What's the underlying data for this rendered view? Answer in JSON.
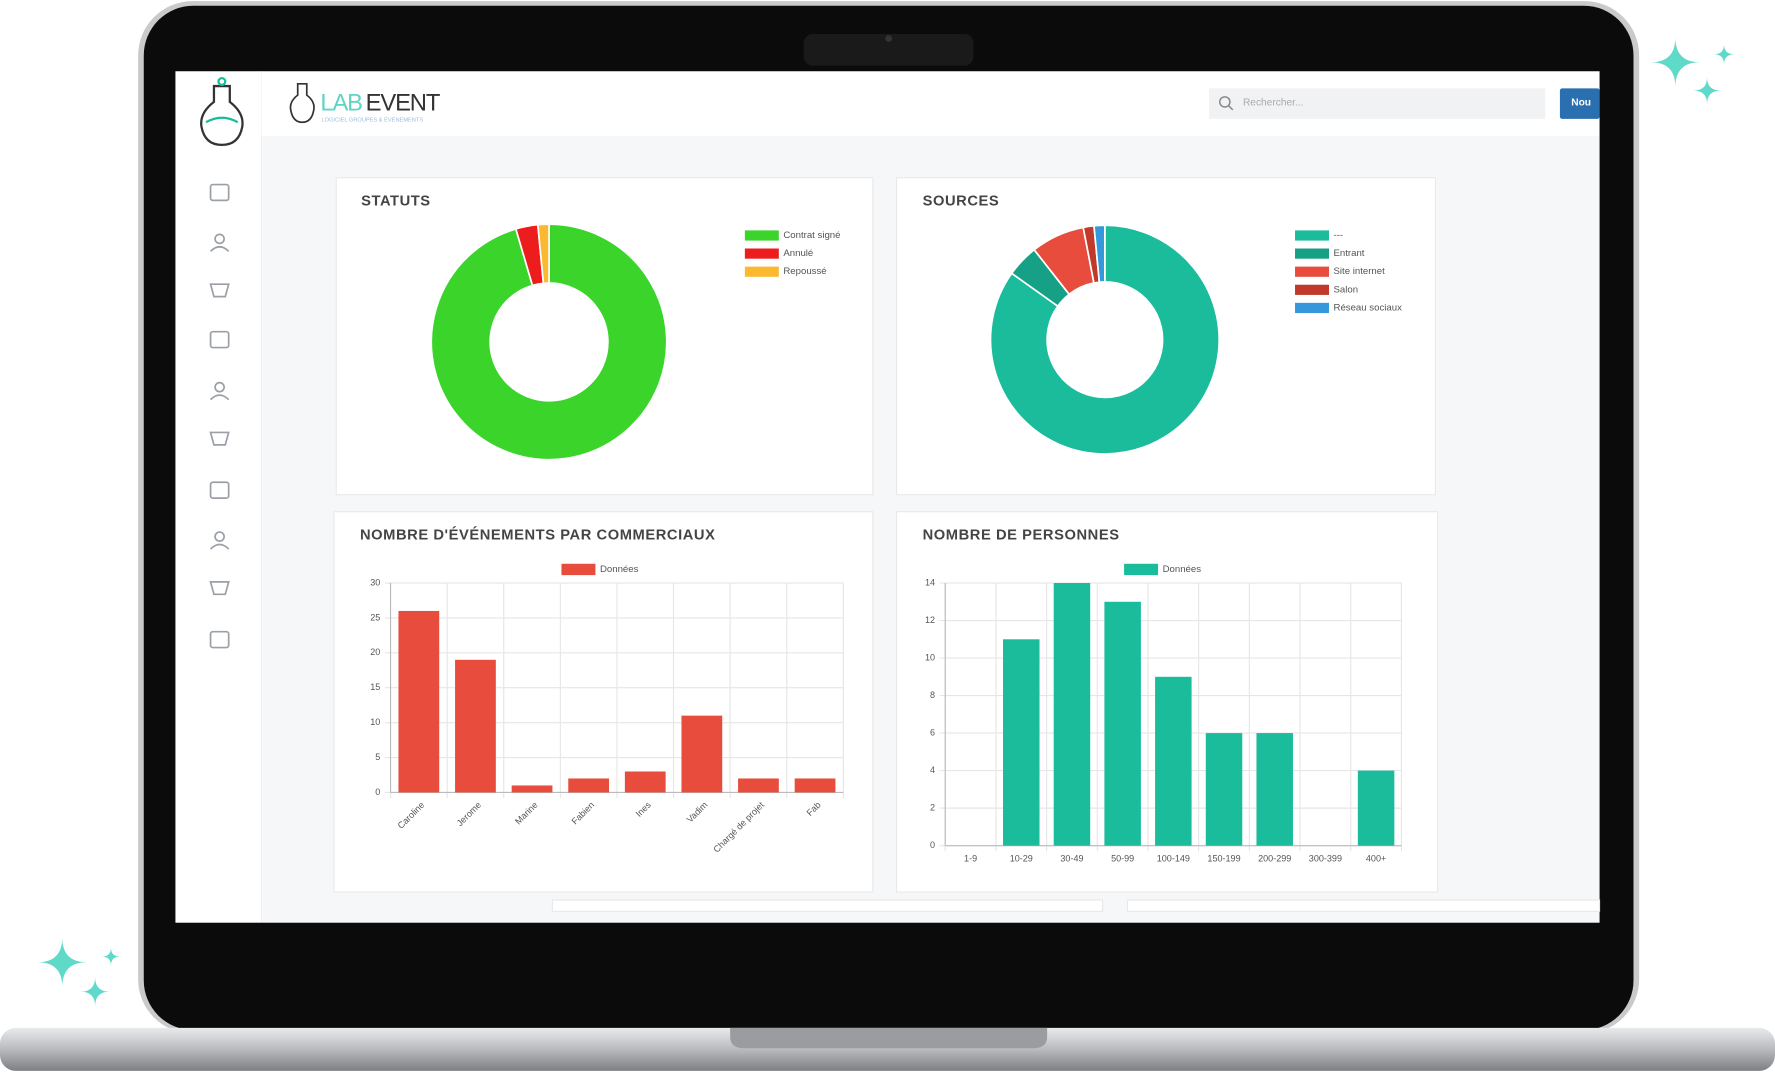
{
  "header": {
    "brand": [
      "LAB",
      "EVENT"
    ],
    "tagline": "LOGICIEL GROUPES & ÉVÉNEMENTS",
    "search_placeholder": "Rechercher...",
    "button": "Nou"
  },
  "chart_data": [
    {
      "type": "doughnut",
      "title": "STATUTS",
      "categories": [
        "Contrat signé",
        "Annulé",
        "Repoussé"
      ],
      "values": [
        63,
        2,
        1
      ],
      "colors": [
        "#3ad42b",
        "#ee1d1d",
        "#fbb92f"
      ]
    },
    {
      "type": "doughnut",
      "title": "SOURCES",
      "categories": [
        "---",
        "Entrant",
        "Site internet",
        "Salon",
        "Réseau sociaux"
      ],
      "values": [
        56,
        3,
        5,
        1,
        1
      ],
      "colors": [
        "#1abc9c",
        "#16a085",
        "#e74c3c",
        "#c0392b",
        "#3498db"
      ]
    },
    {
      "type": "bar",
      "title": "NOMBRE D'ÉVÉNEMENTS PAR COMMERCIAUX",
      "categories": [
        "Caroline",
        "Jerome",
        "Marine",
        "Fabien",
        "Ines",
        "Vadim",
        "Chargé de projet",
        "Fab"
      ],
      "series": [
        {
          "name": "Données",
          "color": "#e74c3c",
          "values": [
            26,
            19,
            1,
            2,
            3,
            11,
            2,
            2
          ]
        }
      ],
      "ylim": [
        0,
        30
      ],
      "yticks": [
        0,
        5,
        10,
        15,
        20,
        25,
        30
      ],
      "grid": true
    },
    {
      "type": "bar",
      "title": "NOMBRE DE PERSONNES",
      "categories": [
        "1-9",
        "10-29",
        "30-49",
        "50-99",
        "100-149",
        "150-199",
        "200-299",
        "300-399",
        "400+"
      ],
      "series": [
        {
          "name": "Données",
          "color": "#1abc9c",
          "values": [
            0,
            11,
            14,
            13,
            9,
            6,
            6,
            0,
            4
          ]
        }
      ],
      "ylim": [
        0,
        14
      ],
      "yticks": [
        0,
        2,
        4,
        6,
        8,
        10,
        12,
        14
      ],
      "grid": true
    }
  ]
}
